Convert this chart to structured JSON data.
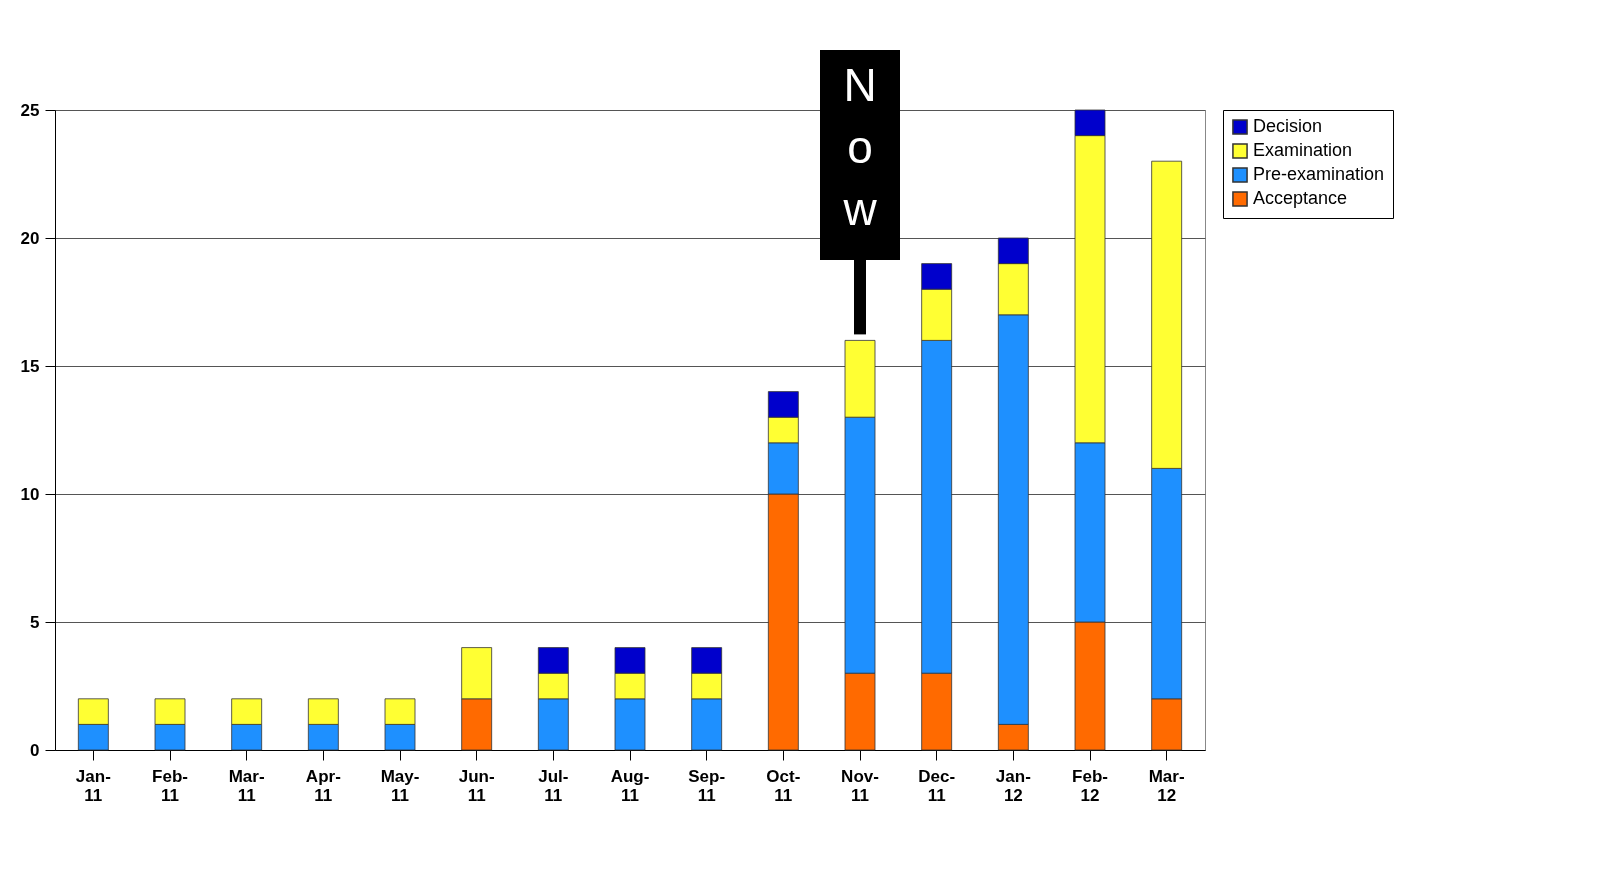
{
  "chart_data": {
    "type": "bar",
    "stacked": true,
    "categories": [
      "Jan-11",
      "Feb-11",
      "Mar-11",
      "Apr-11",
      "May-11",
      "Jun-11",
      "Jul-11",
      "Aug-11",
      "Sep-11",
      "Oct-11",
      "Nov-11",
      "Dec-11",
      "Jan-12",
      "Feb-12",
      "Mar-12"
    ],
    "series": [
      {
        "name": "Acceptance",
        "color": "#ff6a00",
        "values": [
          0,
          0,
          0,
          0,
          0,
          2,
          0,
          0,
          0,
          10,
          3,
          3,
          1,
          5,
          2
        ]
      },
      {
        "name": "Pre-examination",
        "color": "#1e90ff",
        "values": [
          1,
          1,
          1,
          1,
          1,
          0,
          2,
          2,
          2,
          2,
          10,
          13,
          16,
          7,
          9
        ]
      },
      {
        "name": "Examination",
        "color": "#ffff33",
        "values": [
          1,
          1,
          1,
          1,
          1,
          2,
          1,
          1,
          1,
          1,
          3,
          2,
          2,
          12,
          12
        ]
      },
      {
        "name": "Decision",
        "color": "#0000cc",
        "values": [
          0,
          0,
          0,
          0,
          0,
          0,
          1,
          1,
          1,
          1,
          0,
          1,
          1,
          1,
          0
        ]
      }
    ],
    "ylim": [
      0,
      25
    ],
    "yticks": [
      0,
      5,
      10,
      15,
      20,
      25
    ],
    "grid": "y",
    "legend": "right",
    "annotations": [
      {
        "text": "Now",
        "x": "Nov-11",
        "y": 16
      }
    ]
  }
}
